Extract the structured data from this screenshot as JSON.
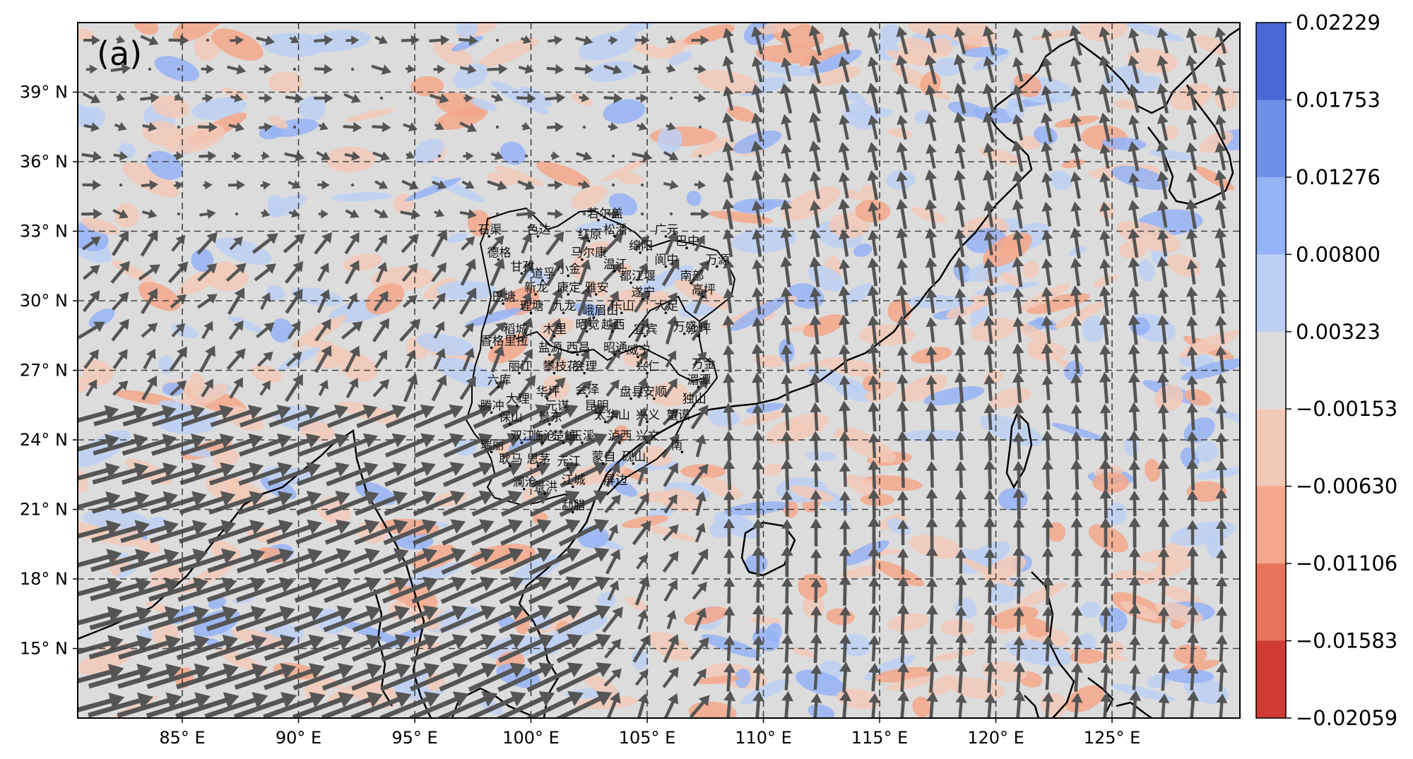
{
  "panel_label": "(a)",
  "map": {
    "lon_range": [
      80.5,
      130.5
    ],
    "lat_range": [
      12.0,
      42.0
    ],
    "lon_ticks": [
      {
        "value": 85,
        "label": "85° E"
      },
      {
        "value": 90,
        "label": "90° E"
      },
      {
        "value": 95,
        "label": "95° E"
      },
      {
        "value": 100,
        "label": "100° E"
      },
      {
        "value": 105,
        "label": "105° E"
      },
      {
        "value": 110,
        "label": "110° E"
      },
      {
        "value": 115,
        "label": "115° E"
      },
      {
        "value": 120,
        "label": "120° E"
      },
      {
        "value": 125,
        "label": "125° E"
      }
    ],
    "lat_ticks": [
      {
        "value": 15,
        "label": "15° N"
      },
      {
        "value": 18,
        "label": "18° N"
      },
      {
        "value": 21,
        "label": "21° N"
      },
      {
        "value": 24,
        "label": "24° N"
      },
      {
        "value": 27,
        "label": "27° N"
      },
      {
        "value": 30,
        "label": "30° N"
      },
      {
        "value": 33,
        "label": "33° N"
      },
      {
        "value": 36,
        "label": "36° N"
      },
      {
        "value": 39,
        "label": "39° N"
      }
    ],
    "grid": true,
    "arrow_color": "#555555",
    "background_color": "#dcdcdc"
  },
  "colorbar": {
    "labels": [
      "0.02229",
      "0.01753",
      "0.01276",
      "0.00800",
      "0.00323",
      "−0.00153",
      "−0.00630",
      "−0.01106",
      "−0.01583",
      "−0.02059"
    ],
    "colors": [
      "#4a67d6",
      "#6f8fe9",
      "#95b3f6",
      "#bcd0f5",
      "#dcdcdc",
      "#f2c9b7",
      "#f4a78a",
      "#e8735a",
      "#d03a35"
    ]
  },
  "cities": [
    {
      "name": "若尔盖",
      "lon": 102.9,
      "lat": 33.6
    },
    {
      "name": "色达",
      "lon": 100.3,
      "lat": 32.9
    },
    {
      "name": "石渠",
      "lon": 98.2,
      "lat": 32.9
    },
    {
      "name": "红原",
      "lon": 102.5,
      "lat": 32.7
    },
    {
      "name": "松潘",
      "lon": 103.6,
      "lat": 32.9
    },
    {
      "name": "广元",
      "lon": 105.8,
      "lat": 32.9
    },
    {
      "name": "德格",
      "lon": 98.6,
      "lat": 31.9
    },
    {
      "name": "马尔康",
      "lon": 102.2,
      "lat": 31.9
    },
    {
      "name": "绵阳",
      "lon": 104.7,
      "lat": 32.2
    },
    {
      "name": "巴中",
      "lon": 106.7,
      "lat": 32.4
    },
    {
      "name": "甘孜",
      "lon": 99.6,
      "lat": 31.3
    },
    {
      "name": "道孚",
      "lon": 100.5,
      "lat": 31.0
    },
    {
      "name": "小金",
      "lon": 101.6,
      "lat": 31.2
    },
    {
      "name": "温江",
      "lon": 103.6,
      "lat": 31.4
    },
    {
      "name": "阆中",
      "lon": 105.8,
      "lat": 31.6
    },
    {
      "name": "万源",
      "lon": 108.0,
      "lat": 31.6
    },
    {
      "name": "新龙",
      "lon": 100.2,
      "lat": 30.4
    },
    {
      "name": "康定",
      "lon": 101.6,
      "lat": 30.4
    },
    {
      "name": "雅安",
      "lon": 102.8,
      "lat": 30.4
    },
    {
      "name": "都江堰",
      "lon": 104.3,
      "lat": 30.9
    },
    {
      "name": "南部",
      "lon": 106.9,
      "lat": 30.9
    },
    {
      "name": "遂宁",
      "lon": 104.8,
      "lat": 30.2
    },
    {
      "name": "高坪",
      "lon": 107.4,
      "lat": 30.3
    },
    {
      "name": "巴塘",
      "lon": 98.8,
      "lat": 30.0
    },
    {
      "name": "理塘",
      "lon": 100.0,
      "lat": 29.6
    },
    {
      "name": "九龙",
      "lon": 101.4,
      "lat": 29.6
    },
    {
      "name": "峨眉山",
      "lon": 102.7,
      "lat": 29.4
    },
    {
      "name": "乐山",
      "lon": 103.9,
      "lat": 29.6
    },
    {
      "name": "大足",
      "lon": 105.8,
      "lat": 29.6
    },
    {
      "name": "稻城",
      "lon": 99.3,
      "lat": 28.6
    },
    {
      "name": "木里",
      "lon": 101.0,
      "lat": 28.6
    },
    {
      "name": "昭觉",
      "lon": 102.4,
      "lat": 28.8
    },
    {
      "name": "越西",
      "lon": 103.5,
      "lat": 28.8
    },
    {
      "name": "宜宾",
      "lon": 104.9,
      "lat": 28.6
    },
    {
      "name": "万盛",
      "lon": 106.6,
      "lat": 28.7
    },
    {
      "name": "沙坪",
      "lon": 107.2,
      "lat": 28.6
    },
    {
      "name": "香格里拉",
      "lon": 98.3,
      "lat": 28.1
    },
    {
      "name": "盐源",
      "lon": 100.8,
      "lat": 27.8
    },
    {
      "name": "西昌",
      "lon": 102.0,
      "lat": 27.8
    },
    {
      "name": "昭通",
      "lon": 103.6,
      "lat": 27.8
    },
    {
      "name": "威宁",
      "lon": 104.6,
      "lat": 27.7
    },
    {
      "name": "丽江",
      "lon": 99.5,
      "lat": 27.0
    },
    {
      "name": "攀枝花",
      "lon": 101.0,
      "lat": 27.0
    },
    {
      "name": "会理",
      "lon": 102.3,
      "lat": 27.0
    },
    {
      "name": "兴仁",
      "lon": 105.0,
      "lat": 27.0
    },
    {
      "name": "万金",
      "lon": 107.4,
      "lat": 27.1
    },
    {
      "name": "六库",
      "lon": 98.6,
      "lat": 26.4
    },
    {
      "name": "湄潭",
      "lon": 107.2,
      "lat": 26.4
    },
    {
      "name": "大理",
      "lon": 99.4,
      "lat": 25.6
    },
    {
      "name": "华坪",
      "lon": 100.7,
      "lat": 25.9
    },
    {
      "name": "会泽",
      "lon": 102.4,
      "lat": 26.0
    },
    {
      "name": "盘县",
      "lon": 104.3,
      "lat": 25.9
    },
    {
      "name": "安顺",
      "lon": 105.3,
      "lat": 25.9
    },
    {
      "name": "独山",
      "lon": 107.0,
      "lat": 25.6
    },
    {
      "name": "腾冲",
      "lon": 98.3,
      "lat": 25.3
    },
    {
      "name": "元谋",
      "lon": 101.1,
      "lat": 25.3
    },
    {
      "name": "昆明",
      "lon": 102.8,
      "lat": 25.3
    },
    {
      "name": "兴义",
      "lon": 105.0,
      "lat": 24.9
    },
    {
      "name": "望谟",
      "lon": 106.3,
      "lat": 24.9
    },
    {
      "name": "保山",
      "lon": 99.1,
      "lat": 24.8
    },
    {
      "name": "景东",
      "lon": 100.8,
      "lat": 24.8
    },
    {
      "name": "太华山",
      "lon": 103.2,
      "lat": 24.9
    },
    {
      "name": "双江",
      "lon": 99.6,
      "lat": 24.0
    },
    {
      "name": "临沧",
      "lon": 100.5,
      "lat": 24.0
    },
    {
      "name": "楚雄",
      "lon": 101.4,
      "lat": 24.0
    },
    {
      "name": "玉溪",
      "lon": 102.2,
      "lat": 24.0
    },
    {
      "name": "泸西",
      "lon": 103.8,
      "lat": 24.0
    },
    {
      "name": "兴文",
      "lon": 105.0,
      "lat": 24.0
    },
    {
      "name": "瑞丽",
      "lon": 98.3,
      "lat": 23.6
    },
    {
      "name": "南",
      "lon": 106.5,
      "lat": 23.6
    },
    {
      "name": "耿马",
      "lon": 99.1,
      "lat": 23.0
    },
    {
      "name": "思茅",
      "lon": 100.3,
      "lat": 23.0
    },
    {
      "name": "元江",
      "lon": 101.6,
      "lat": 22.9
    },
    {
      "name": "蒙自",
      "lon": 103.1,
      "lat": 23.1
    },
    {
      "name": "砚山",
      "lon": 104.4,
      "lat": 23.1
    },
    {
      "name": "澜沧",
      "lon": 99.7,
      "lat": 22.0
    },
    {
      "name": "景洪",
      "lon": 100.6,
      "lat": 21.8
    },
    {
      "name": "江城",
      "lon": 101.8,
      "lat": 22.1
    },
    {
      "name": "屏边",
      "lon": 103.6,
      "lat": 22.1
    },
    {
      "name": "勐腊",
      "lon": 101.8,
      "lat": 21.0
    }
  ]
}
